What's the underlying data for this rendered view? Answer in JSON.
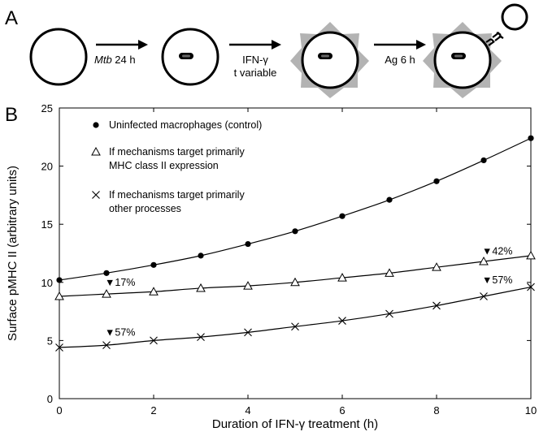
{
  "panels": {
    "a_label": "A",
    "b_label": "B"
  },
  "schematic": {
    "arrow1_label_italic": "Mtb",
    "arrow1_label_rest": " 24 h",
    "arrow2_label_line1": "IFN-γ",
    "arrow2_label_line2": "t variable",
    "arrow3_label": "Ag 6 h"
  },
  "chart_data": {
    "type": "line",
    "xlabel": "Duration of IFN-γ treatment (h)",
    "ylabel": "Surface pMHC II (arbitrary units)",
    "xlim": [
      0,
      10
    ],
    "ylim": [
      0,
      25
    ],
    "xticks": [
      "0",
      "2",
      "4",
      "6",
      "8",
      "10"
    ],
    "yticks": [
      "0",
      "5",
      "10",
      "15",
      "20",
      "25"
    ],
    "x": [
      0,
      1,
      2,
      3,
      4,
      5,
      6,
      7,
      8,
      9,
      10
    ],
    "grid": false,
    "legend_position": "top-left",
    "series": [
      {
        "name": "Uninfected macrophages (control)",
        "marker": "circle",
        "values": [
          10.2,
          10.8,
          11.5,
          12.3,
          13.3,
          14.4,
          15.7,
          17.1,
          18.7,
          20.5,
          22.4
        ]
      },
      {
        "name": "If mechanisms target primarily MHC class II expression",
        "marker": "triangle",
        "values": [
          8.8,
          9.0,
          9.2,
          9.5,
          9.7,
          10.0,
          10.4,
          10.8,
          11.3,
          11.8,
          12.3
        ]
      },
      {
        "name": "If mechanisms target primarily other processes",
        "marker": "x",
        "values": [
          4.4,
          4.6,
          5.0,
          5.3,
          5.7,
          6.2,
          6.7,
          7.3,
          8.0,
          8.8,
          9.6
        ]
      }
    ],
    "legend_lines": [
      [
        "Uninfected macrophages (control)"
      ],
      [
        "If mechanisms target primarily",
        "MHC class II expression"
      ],
      [
        "If mechanisms target primarily",
        "other processes"
      ]
    ],
    "annotations": [
      {
        "text": "▼17%",
        "x": 1,
        "y": 9.7
      },
      {
        "text": "▼57%",
        "x": 1,
        "y": 5.4
      },
      {
        "text": "▼42%",
        "x": 9,
        "y": 12.4
      },
      {
        "text": "▼57%",
        "x": 9,
        "y": 9.9
      }
    ]
  }
}
